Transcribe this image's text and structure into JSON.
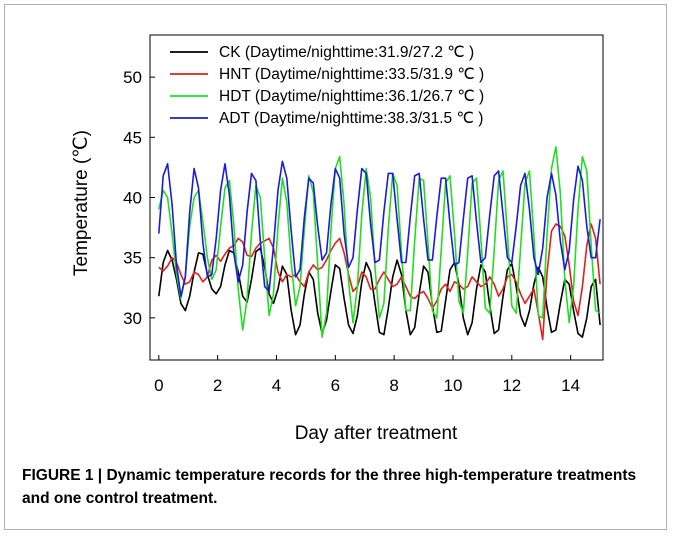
{
  "caption": {
    "label": "FIGURE 1 |",
    "text": "Dynamic temperature records for the three high-temperature treatments and one control treatment."
  },
  "chart_data": {
    "type": "line",
    "title": "",
    "xlabel": "Day after treatment",
    "ylabel": "Temperature (℃)",
    "xlim": [
      -0.3,
      15.1
    ],
    "ylim": [
      26.5,
      53.5
    ],
    "x_ticks": [
      0,
      2,
      4,
      6,
      8,
      10,
      12,
      14
    ],
    "y_ticks": [
      30,
      35,
      40,
      45,
      50
    ],
    "grid": false,
    "legend_position": "top-left",
    "series": [
      {
        "name": "CK (Daytime/nighttime:31.9/27.2 ℃ )",
        "color": "#000000",
        "x": [
          0,
          0.15,
          0.3,
          0.45,
          0.6,
          0.75,
          0.9,
          1.05,
          1.2,
          1.35,
          1.5,
          1.65,
          1.8,
          1.95,
          2.1,
          2.25,
          2.4,
          2.55,
          2.7,
          2.85,
          3.0,
          3.15,
          3.3,
          3.45,
          3.6,
          3.75,
          3.9,
          4.05,
          4.2,
          4.35,
          4.5,
          4.65,
          4.8,
          4.95,
          5.1,
          5.25,
          5.4,
          5.55,
          5.7,
          5.85,
          6.0,
          6.15,
          6.3,
          6.45,
          6.6,
          6.75,
          6.9,
          7.05,
          7.2,
          7.35,
          7.5,
          7.65,
          7.8,
          7.95,
          8.1,
          8.25,
          8.4,
          8.55,
          8.7,
          8.85,
          9.0,
          9.15,
          9.3,
          9.45,
          9.6,
          9.75,
          9.9,
          10.05,
          10.2,
          10.35,
          10.5,
          10.65,
          10.8,
          10.95,
          11.1,
          11.25,
          11.4,
          11.55,
          11.7,
          11.85,
          12.0,
          12.15,
          12.3,
          12.45,
          12.6,
          12.75,
          12.9,
          13.05,
          13.2,
          13.35,
          13.5,
          13.65,
          13.8,
          13.95,
          14.1,
          14.25,
          14.4,
          14.55,
          14.7,
          14.85,
          15.0
        ],
        "values": [
          31.8,
          34.6,
          35.6,
          34.8,
          33.2,
          31.2,
          30.6,
          31.8,
          33.8,
          35.4,
          35.3,
          33.6,
          32.4,
          32.0,
          32.6,
          34.4,
          35.6,
          35.4,
          33.8,
          31.8,
          31.3,
          33.2,
          35.5,
          35.8,
          34.2,
          32.0,
          31.2,
          32.4,
          34.3,
          33.6,
          30.6,
          28.6,
          29.4,
          32.0,
          33.8,
          33.2,
          30.4,
          28.7,
          29.8,
          32.2,
          34.4,
          34.1,
          31.6,
          29.4,
          28.7,
          30.2,
          33.0,
          34.6,
          33.8,
          31.2,
          28.8,
          28.6,
          30.8,
          33.4,
          34.8,
          33.6,
          30.6,
          28.6,
          29.2,
          32.0,
          34.3,
          33.8,
          31.0,
          28.8,
          28.9,
          31.4,
          34.0,
          34.6,
          32.8,
          30.0,
          28.6,
          29.6,
          32.4,
          34.4,
          33.8,
          31.0,
          28.7,
          29.0,
          31.8,
          34.0,
          34.5,
          32.6,
          30.2,
          29.3,
          30.6,
          32.8,
          34.2,
          33.4,
          30.8,
          28.8,
          29.0,
          31.2,
          33.2,
          32.8,
          30.6,
          28.7,
          28.4,
          30.0,
          32.6,
          33.2,
          29.4
        ]
      },
      {
        "name": "HNT (Daytime/nighttime:33.5/31.9 ℃ )",
        "color": "#e0201c",
        "x": [
          0,
          0.15,
          0.3,
          0.45,
          0.6,
          0.75,
          0.9,
          1.05,
          1.2,
          1.35,
          1.5,
          1.65,
          1.8,
          1.95,
          2.1,
          2.25,
          2.4,
          2.55,
          2.7,
          2.85,
          3.0,
          3.15,
          3.3,
          3.45,
          3.6,
          3.75,
          3.9,
          4.05,
          4.2,
          4.35,
          4.5,
          4.65,
          4.8,
          4.95,
          5.1,
          5.25,
          5.4,
          5.55,
          5.7,
          5.85,
          6.0,
          6.15,
          6.3,
          6.45,
          6.6,
          6.75,
          6.9,
          7.05,
          7.2,
          7.35,
          7.5,
          7.65,
          7.8,
          7.95,
          8.1,
          8.25,
          8.4,
          8.55,
          8.7,
          8.85,
          9.0,
          9.15,
          9.3,
          9.45,
          9.6,
          9.75,
          9.9,
          10.05,
          10.2,
          10.35,
          10.5,
          10.65,
          10.8,
          10.95,
          11.1,
          11.25,
          11.4,
          11.55,
          11.7,
          11.85,
          12.0,
          12.15,
          12.3,
          12.45,
          12.6,
          12.75,
          12.9,
          13.05,
          13.2,
          13.35,
          13.5,
          13.65,
          13.8,
          13.95,
          14.1,
          14.25,
          14.4,
          14.55,
          14.7,
          14.85,
          15.0
        ],
        "values": [
          34.2,
          33.9,
          34.3,
          35.0,
          34.6,
          33.6,
          32.8,
          33.0,
          33.8,
          33.6,
          33.0,
          33.4,
          34.8,
          35.2,
          34.7,
          35.3,
          35.8,
          36.0,
          36.6,
          36.3,
          35.2,
          35.1,
          35.8,
          36.2,
          36.4,
          36.6,
          35.8,
          33.8,
          33.0,
          33.6,
          33.4,
          33.6,
          33.0,
          32.6,
          33.8,
          34.4,
          34.0,
          34.2,
          34.8,
          35.6,
          36.2,
          36.6,
          35.4,
          33.6,
          32.2,
          32.6,
          33.8,
          33.4,
          32.4,
          32.4,
          33.2,
          33.8,
          33.2,
          32.6,
          32.8,
          33.4,
          32.6,
          31.8,
          31.6,
          32.0,
          32.2,
          31.6,
          30.8,
          31.4,
          32.4,
          32.8,
          32.2,
          33.0,
          32.8,
          32.4,
          32.6,
          33.4,
          33.0,
          32.6,
          32.8,
          33.4,
          32.8,
          31.8,
          32.4,
          33.4,
          33.6,
          33.0,
          32.0,
          31.2,
          31.8,
          32.4,
          30.4,
          28.2,
          33.8,
          37.2,
          37.8,
          37.6,
          36.8,
          34.4,
          31.4,
          30.2,
          32.6,
          36.0,
          37.8,
          36.6,
          32.8
        ]
      },
      {
        "name": "HDT (Daytime/nighttime:36.1/26.7 ℃ )",
        "color": "#22dd22",
        "x": [
          0,
          0.15,
          0.3,
          0.45,
          0.6,
          0.75,
          0.9,
          1.05,
          1.2,
          1.35,
          1.5,
          1.65,
          1.8,
          1.95,
          2.1,
          2.25,
          2.4,
          2.55,
          2.7,
          2.85,
          3.0,
          3.15,
          3.3,
          3.45,
          3.6,
          3.75,
          3.9,
          4.05,
          4.2,
          4.35,
          4.5,
          4.65,
          4.8,
          4.95,
          5.1,
          5.25,
          5.4,
          5.55,
          5.7,
          5.85,
          6.0,
          6.15,
          6.3,
          6.45,
          6.6,
          6.75,
          6.9,
          7.05,
          7.2,
          7.35,
          7.5,
          7.65,
          7.8,
          7.95,
          8.1,
          8.25,
          8.4,
          8.55,
          8.7,
          8.85,
          9.0,
          9.15,
          9.3,
          9.45,
          9.6,
          9.75,
          9.9,
          10.05,
          10.2,
          10.35,
          10.5,
          10.65,
          10.8,
          10.95,
          11.1,
          11.25,
          11.4,
          11.55,
          11.7,
          11.85,
          12.0,
          12.15,
          12.3,
          12.45,
          12.6,
          12.75,
          12.9,
          13.05,
          13.2,
          13.35,
          13.5,
          13.65,
          13.8,
          13.95,
          14.1,
          14.25,
          14.4,
          14.55,
          14.7,
          14.85,
          15.0
        ],
        "values": [
          39.0,
          40.6,
          40.0,
          37.0,
          33.6,
          31.6,
          33.4,
          37.6,
          40.0,
          40.6,
          38.0,
          35.0,
          33.2,
          34.0,
          37.6,
          40.8,
          41.4,
          37.8,
          32.4,
          29.0,
          31.6,
          37.0,
          41.0,
          40.0,
          35.0,
          30.2,
          32.0,
          37.6,
          41.6,
          39.6,
          34.6,
          31.0,
          32.6,
          37.4,
          41.8,
          40.4,
          34.4,
          28.4,
          30.4,
          37.2,
          42.4,
          43.4,
          39.4,
          33.0,
          29.6,
          32.6,
          38.6,
          42.4,
          40.0,
          34.2,
          30.0,
          31.2,
          37.4,
          42.0,
          41.0,
          35.4,
          30.6,
          30.6,
          36.4,
          41.6,
          41.4,
          36.2,
          30.6,
          30.0,
          35.6,
          41.2,
          41.8,
          37.0,
          31.4,
          30.4,
          35.4,
          41.2,
          41.6,
          36.6,
          30.8,
          30.4,
          35.6,
          41.4,
          42.2,
          37.0,
          31.0,
          30.4,
          35.8,
          41.2,
          42.2,
          36.8,
          30.2,
          30.0,
          37.0,
          42.4,
          44.2,
          40.4,
          33.2,
          29.6,
          32.6,
          39.0,
          43.4,
          42.2,
          36.0,
          30.6,
          30.4
        ]
      },
      {
        "name": "ADT (Daytime/nighttime:38.3/31.5 ℃ )",
        "color": "#1a1ae0",
        "x": [
          0,
          0.15,
          0.3,
          0.45,
          0.6,
          0.75,
          0.9,
          1.05,
          1.2,
          1.35,
          1.5,
          1.65,
          1.8,
          1.95,
          2.1,
          2.25,
          2.4,
          2.55,
          2.7,
          2.85,
          3.0,
          3.15,
          3.3,
          3.45,
          3.6,
          3.75,
          3.9,
          4.05,
          4.2,
          4.35,
          4.5,
          4.65,
          4.8,
          4.95,
          5.1,
          5.25,
          5.4,
          5.55,
          5.7,
          5.85,
          6.0,
          6.15,
          6.3,
          6.45,
          6.6,
          6.75,
          6.9,
          7.05,
          7.2,
          7.35,
          7.5,
          7.65,
          7.8,
          7.95,
          8.1,
          8.25,
          8.4,
          8.55,
          8.7,
          8.85,
          9.0,
          9.15,
          9.3,
          9.45,
          9.6,
          9.75,
          9.9,
          10.05,
          10.2,
          10.35,
          10.5,
          10.65,
          10.8,
          10.95,
          11.1,
          11.25,
          11.4,
          11.55,
          11.7,
          11.85,
          12.0,
          12.15,
          12.3,
          12.45,
          12.6,
          12.75,
          12.9,
          13.05,
          13.2,
          13.35,
          13.5,
          13.65,
          13.8,
          13.95,
          14.1,
          14.25,
          14.4,
          14.55,
          14.7,
          14.85,
          15.0
        ],
        "values": [
          37.0,
          41.8,
          42.8,
          39.4,
          34.4,
          31.8,
          33.4,
          38.8,
          42.4,
          40.8,
          36.2,
          33.4,
          33.6,
          36.6,
          40.6,
          42.8,
          40.2,
          35.4,
          33.0,
          34.4,
          38.8,
          42.0,
          41.4,
          36.4,
          32.6,
          32.2,
          36.0,
          40.6,
          43.0,
          41.6,
          37.2,
          33.4,
          34.0,
          38.4,
          41.6,
          41.2,
          37.6,
          34.8,
          35.4,
          39.4,
          42.4,
          41.6,
          37.0,
          34.2,
          35.0,
          39.0,
          42.4,
          42.0,
          37.8,
          34.6,
          34.8,
          38.8,
          42.0,
          42.0,
          38.2,
          34.6,
          34.6,
          38.4,
          41.8,
          42.0,
          38.2,
          34.8,
          34.8,
          38.4,
          41.6,
          41.6,
          37.8,
          34.4,
          34.6,
          38.2,
          41.6,
          41.8,
          38.0,
          34.6,
          35.0,
          38.6,
          41.8,
          42.2,
          38.6,
          35.0,
          34.6,
          37.6,
          41.0,
          42.0,
          39.0,
          35.0,
          33.6,
          35.8,
          40.0,
          42.0,
          40.2,
          36.4,
          34.0,
          35.6,
          39.8,
          42.6,
          41.4,
          37.6,
          35.0,
          35.0,
          38.2
        ]
      }
    ]
  }
}
